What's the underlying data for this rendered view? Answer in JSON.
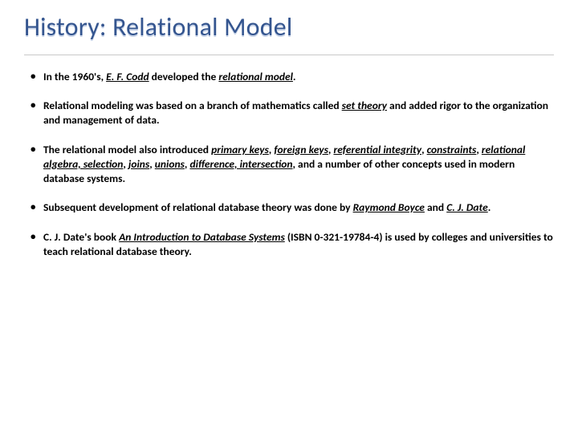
{
  "title": "History: Relational Model",
  "title_color_top": "#34558f",
  "title_color_shadow": "#c7d3e8",
  "title_fontsize": 32,
  "rule_color": "#c9c9c9",
  "bullet_fontsize": 13.5,
  "bullet_fontweight": 600,
  "bullets": [
    {
      "segments": [
        {
          "text": "In the 1960's, ",
          "style": "plain"
        },
        {
          "text": "E. F. Codd",
          "style": "underline-italic"
        },
        {
          "text": " developed the ",
          "style": "plain"
        },
        {
          "text": "relational model",
          "style": "underline-italic"
        },
        {
          "text": ".",
          "style": "plain"
        }
      ]
    },
    {
      "segments": [
        {
          "text": "Relational modeling was based on a branch of mathematics called ",
          "style": "plain"
        },
        {
          "text": "set theory",
          "style": "underline-italic"
        },
        {
          "text": " and added rigor to the organization and management of data.",
          "style": "plain"
        }
      ]
    },
    {
      "segments": [
        {
          "text": "The relational model also introduced ",
          "style": "plain"
        },
        {
          "text": "primary keys",
          "style": "underline-italic"
        },
        {
          "text": ", ",
          "style": "plain"
        },
        {
          "text": "foreign keys",
          "style": "underline-italic"
        },
        {
          "text": ", ",
          "style": "plain"
        },
        {
          "text": "referential integrity",
          "style": "underline-italic"
        },
        {
          "text": ", ",
          "style": "plain"
        },
        {
          "text": "constraints",
          "style": "underline-italic"
        },
        {
          "text": ", ",
          "style": "plain"
        },
        {
          "text": "relational algebra, selection",
          "style": "underline-italic"
        },
        {
          "text": ", ",
          "style": "plain"
        },
        {
          "text": "joins",
          "style": "underline-italic"
        },
        {
          "text": ", ",
          "style": "plain"
        },
        {
          "text": "unions",
          "style": "underline-italic"
        },
        {
          "text": ", ",
          "style": "plain"
        },
        {
          "text": "difference, intersection",
          "style": "underline-italic"
        },
        {
          "text": ", and a number of other concepts used in modern database systems.",
          "style": "plain"
        }
      ]
    },
    {
      "segments": [
        {
          "text": "Subsequent development of relational database theory was done by ",
          "style": "plain"
        },
        {
          "text": "Raymond Boyce",
          "style": "underline-italic"
        },
        {
          "text": " and ",
          "style": "plain"
        },
        {
          "text": "C. J. Date",
          "style": "underline-italic"
        },
        {
          "text": ".",
          "style": "plain"
        }
      ]
    },
    {
      "segments": [
        {
          "text": "C. J. Date's book ",
          "style": "plain"
        },
        {
          "text": "An Introduction to Database Systems",
          "style": "underline-italic"
        },
        {
          "text": " (ISBN 0-321-19784-4) is used by colleges and universities to teach relational database theory.",
          "style": "plain"
        }
      ]
    }
  ]
}
